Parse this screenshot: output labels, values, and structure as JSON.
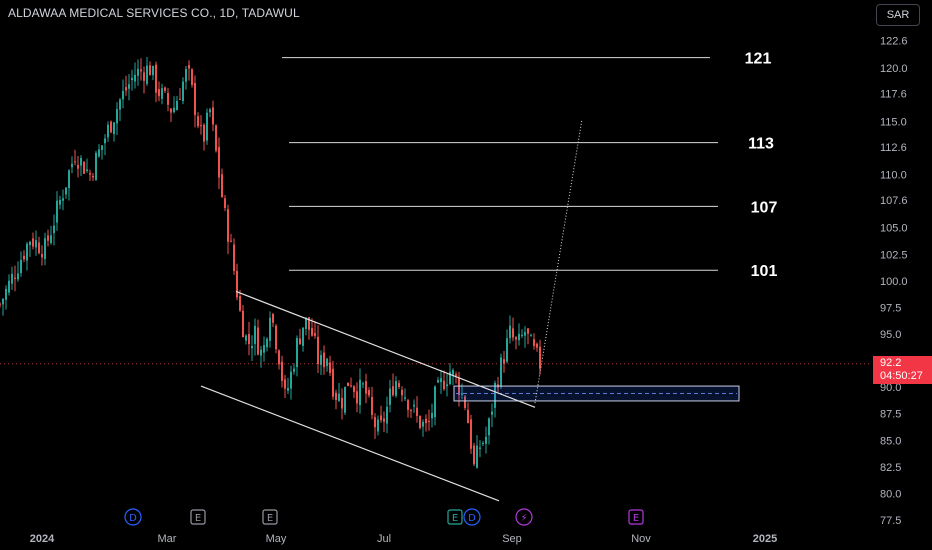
{
  "header": {
    "title": "ALDAWAA MEDICAL SERVICES CO., 1D, TADAWUL",
    "currency_button": "SAR"
  },
  "price_tag": {
    "price": "92.2",
    "countdown": "04:50:27",
    "color": "#f23645"
  },
  "colors": {
    "up": "#26a69a",
    "down": "#ef5350",
    "background": "#000000",
    "event_blue": "#2962ff",
    "event_gray": "#9598a1",
    "event_purple": "#b13adc"
  },
  "chart_data": {
    "type": "candlestick",
    "y_axis": {
      "min": 77.5,
      "max": 122.6,
      "ticks": [
        "77.5",
        "80.0",
        "82.5",
        "85.0",
        "87.5",
        "90.0",
        "92.5",
        "95.0",
        "97.5",
        "100.0",
        "102.5",
        "105.0",
        "107.6",
        "110.0",
        "112.6",
        "115.0",
        "117.6",
        "120.0",
        "122.6"
      ]
    },
    "x_axis": {
      "labels": [
        "2024",
        "Mar",
        "May",
        "Jul",
        "Sep",
        "Nov",
        "2025"
      ]
    },
    "series_path": [
      [
        0,
        97.8
      ],
      [
        2,
        104
      ],
      [
        3,
        103
      ],
      [
        5,
        112
      ],
      [
        6,
        110
      ],
      [
        8,
        117
      ],
      [
        9,
        119.5
      ],
      [
        10,
        120
      ],
      [
        10.5,
        118
      ],
      [
        11.5,
        116
      ],
      [
        12.5,
        119.8
      ],
      [
        13.5,
        113
      ],
      [
        14,
        116
      ],
      [
        14.5,
        111
      ],
      [
        15,
        106
      ],
      [
        15.3,
        104
      ],
      [
        15.6,
        101
      ],
      [
        16,
        97
      ],
      [
        16.5,
        94
      ],
      [
        17,
        95
      ],
      [
        17.5,
        92.8
      ],
      [
        18,
        97.5
      ],
      [
        18.6,
        93
      ],
      [
        19,
        89
      ],
      [
        19.3,
        90.5
      ],
      [
        19.8,
        94
      ],
      [
        20.3,
        96.3
      ],
      [
        20.8,
        95
      ],
      [
        21.3,
        92
      ],
      [
        21.8,
        93
      ],
      [
        22.3,
        89.5
      ],
      [
        22.8,
        88.8
      ],
      [
        23.3,
        91
      ],
      [
        23.8,
        89.5
      ],
      [
        24.3,
        90
      ],
      [
        24.8,
        87
      ],
      [
        25.3,
        85.7
      ],
      [
        25.8,
        88
      ],
      [
        26.3,
        90.8
      ],
      [
        26.8,
        90
      ],
      [
        27.3,
        88.5
      ],
      [
        27.8,
        87
      ],
      [
        28.5,
        86
      ],
      [
        29,
        89
      ],
      [
        29.5,
        90.5
      ],
      [
        30,
        91.5
      ],
      [
        30.5,
        90.5
      ],
      [
        31,
        88.5
      ],
      [
        31.3,
        86
      ],
      [
        31.6,
        82.4
      ],
      [
        32,
        84.5
      ],
      [
        32.5,
        85.5
      ],
      [
        33,
        90
      ],
      [
        33.5,
        92.5
      ],
      [
        34,
        95
      ],
      [
        34.5,
        93.8
      ],
      [
        35,
        95.2
      ],
      [
        35.5,
        93.5
      ],
      [
        36,
        92.2
      ]
    ],
    "levels": [
      {
        "label": "121",
        "value": 121
      },
      {
        "label": "113",
        "value": 113
      },
      {
        "label": "107",
        "value": 107
      },
      {
        "label": "101",
        "value": 101
      }
    ],
    "zone": {
      "from": 88.7,
      "to": 90.1
    },
    "channel": {
      "upper": {
        "from": [
          "Apr",
          99.0
        ],
        "to": [
          "Sep",
          88.1
        ]
      },
      "lower": {
        "from": [
          "Feb-end",
          90.1
        ],
        "to": [
          "Aug-end",
          79.3
        ]
      }
    },
    "projection": {
      "from": [
        "Sep",
        88.5
      ],
      "to": [
        "Sep-end",
        115.2
      ]
    },
    "current_price": 92.2,
    "events": [
      {
        "type": "D",
        "color": "#2962ff"
      },
      {
        "type": "E",
        "color": "#9598a1"
      },
      {
        "type": "E",
        "color": "#9598a1"
      },
      {
        "type": "E",
        "color": "#26a69a"
      },
      {
        "type": "D",
        "color": "#2962ff"
      },
      {
        "type": "⚡",
        "color": "#b13adc"
      },
      {
        "type": "E",
        "color": "#b13adc"
      }
    ]
  }
}
